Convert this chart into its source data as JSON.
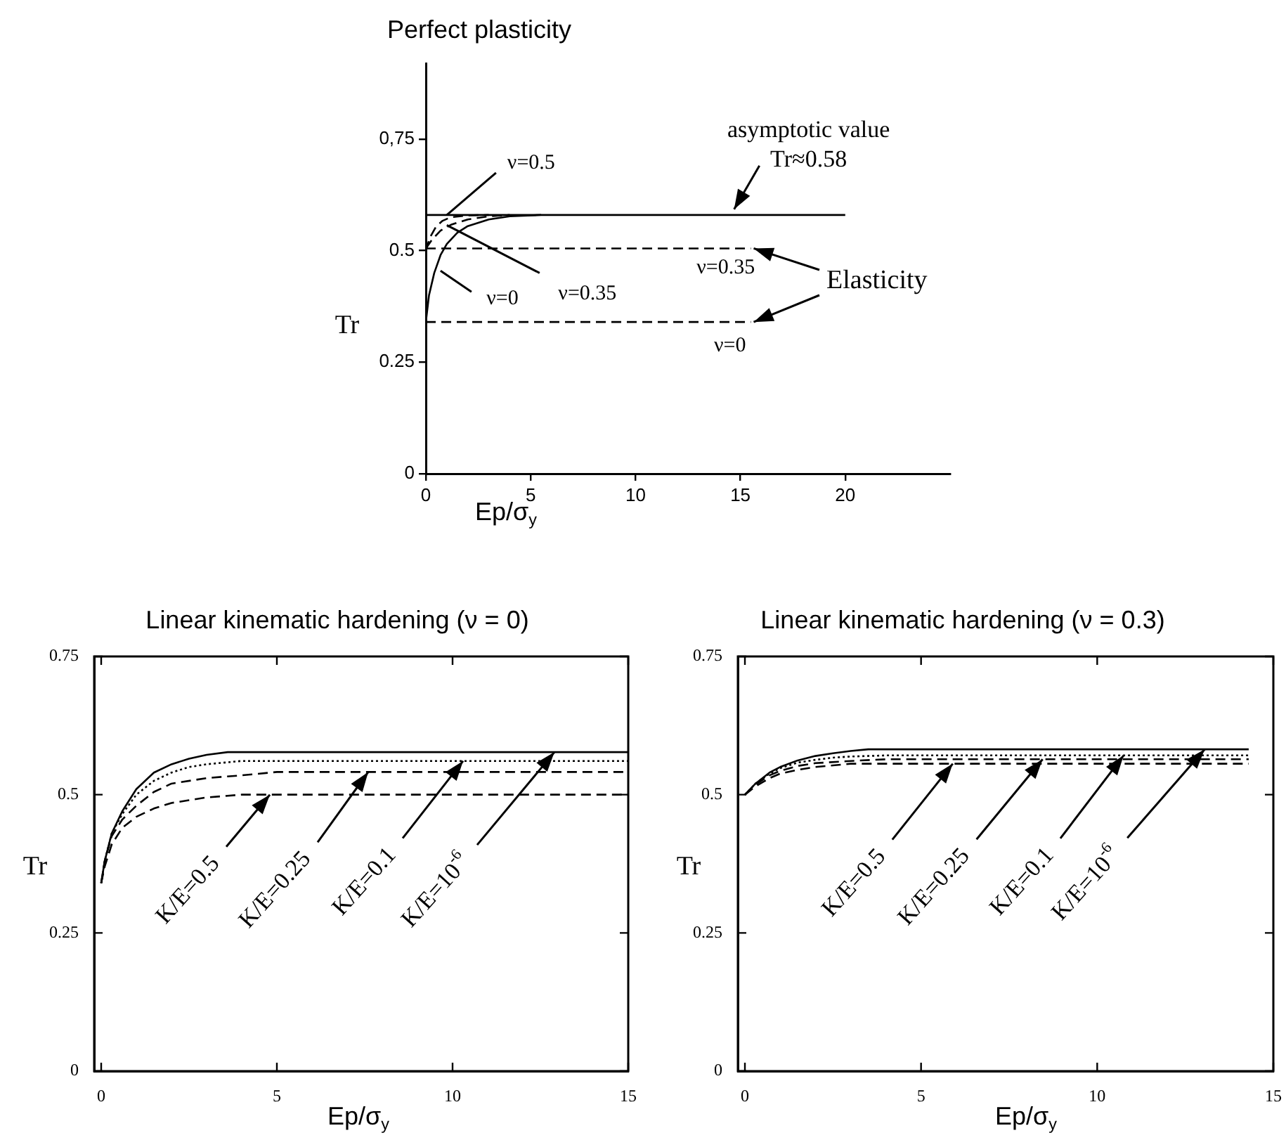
{
  "chart_data": [
    {
      "type": "line",
      "title": "Perfect plasticity",
      "xlabel": "Ep/σ$_{y}$",
      "ylabel": "Tr",
      "xlim": [
        0,
        25
      ],
      "xticks": [
        0,
        5,
        10,
        15,
        20
      ],
      "ylim": [
        0,
        0.92
      ],
      "yticks": [
        0,
        0.25,
        0.5,
        {
          "value": 0.75,
          "label": "0,75"
        }
      ],
      "series": [
        {
          "color": "#000000",
          "line_style": "dashed",
          "x": [
            0,
            0.2,
            0.5,
            0.8,
            1.2,
            2,
            3
          ],
          "values": [
            0.5,
            0.53,
            0.555,
            0.567,
            0.575,
            0.579,
            0.58
          ]
        },
        {
          "color": "#000000",
          "line_style": "dashed",
          "x": [
            0,
            0.3,
            0.7,
            1.2,
            2,
            3,
            4
          ],
          "values": [
            0.505,
            0.525,
            0.545,
            0.558,
            0.57,
            0.577,
            0.58
          ]
        },
        {
          "color": "#000000",
          "line_style": "solid",
          "x": [
            0,
            0.15,
            0.4,
            0.7,
            1,
            1.5,
            2,
            3,
            4,
            5.5
          ],
          "values": [
            0.34,
            0.4,
            0.45,
            0.49,
            0.515,
            0.54,
            0.555,
            0.57,
            0.577,
            0.58
          ]
        },
        {
          "color": "#000000",
          "line_style": "solid",
          "x": [
            0,
            20
          ],
          "values": [
            0.58,
            0.58
          ]
        },
        {
          "color": "#000000",
          "line_style": "dashed",
          "x": [
            0,
            15.5
          ],
          "values": [
            0.505,
            0.505
          ]
        },
        {
          "color": "#000000",
          "line_style": "dashed",
          "x": [
            0,
            15.5
          ],
          "values": [
            0.34,
            0.34
          ]
        }
      ],
      "annotations": [
        {
          "text": "asymptotic value\nTr≈0.58",
          "x": 14.7,
          "y": 0.58
        },
        {
          "text": "ν=0.5",
          "x": 1,
          "y": 0.58
        },
        {
          "text": "ν=0.35",
          "x": 1,
          "y": 0.557
        },
        {
          "text": "ν=0",
          "x": 0.7,
          "y": 0.455
        },
        {
          "text": "ν=0.35",
          "x": 14.3,
          "y": 0.505
        },
        {
          "text": "ν=0",
          "x": 14.5,
          "y": 0.34
        },
        {
          "text": "Elasticity",
          "x": 15.5,
          "y": 0.505
        }
      ]
    },
    {
      "type": "line",
      "title": "Linear kinematic hardening (ν = 0)",
      "xlabel": "Ep/σ$_{y}$",
      "ylabel": "Tr",
      "xlim": [
        -0.2,
        15
      ],
      "xticks": [
        0,
        5,
        10,
        15
      ],
      "ylim": [
        0,
        0.75
      ],
      "yticks": [
        0,
        0.25,
        0.5,
        0.75
      ],
      "series": [
        {
          "color": "#000000",
          "line_style": "solid",
          "x": [
            0,
            0.1,
            0.3,
            0.6,
            1,
            1.5,
            2,
            2.5,
            3,
            3.6,
            15
          ],
          "values": [
            0.34,
            0.38,
            0.43,
            0.47,
            0.51,
            0.54,
            0.555,
            0.565,
            0.572,
            0.577,
            0.577
          ]
        },
        {
          "color": "#000000",
          "line_style": "dotted",
          "x": [
            0,
            0.1,
            0.3,
            0.6,
            1,
            1.5,
            2,
            2.5,
            3,
            4,
            15
          ],
          "values": [
            0.34,
            0.38,
            0.43,
            0.465,
            0.5,
            0.525,
            0.54,
            0.55,
            0.555,
            0.561,
            0.561
          ]
        },
        {
          "color": "#000000",
          "line_style": "dashed",
          "x": [
            0,
            0.1,
            0.3,
            0.6,
            1,
            1.5,
            2,
            3,
            4,
            5,
            15
          ],
          "values": [
            0.34,
            0.38,
            0.425,
            0.455,
            0.48,
            0.505,
            0.52,
            0.53,
            0.535,
            0.541,
            0.541
          ]
        },
        {
          "color": "#000000",
          "line_style": "dashed",
          "x": [
            0,
            0.1,
            0.3,
            0.6,
            1,
            1.5,
            2,
            2.5,
            3,
            4,
            15
          ],
          "values": [
            0.34,
            0.37,
            0.41,
            0.44,
            0.46,
            0.475,
            0.485,
            0.49,
            0.495,
            0.5,
            0.5
          ]
        }
      ],
      "annotations": [
        {
          "text": "K/E=0.5",
          "x": 4.8,
          "y": 0.5
        },
        {
          "text": "K/E=0.25",
          "x": 7.6,
          "y": 0.541
        },
        {
          "text": "K/E=0.1",
          "x": 10.3,
          "y": 0.561
        },
        {
          "text": "K/E=10$^{-6}$",
          "x": 12.9,
          "y": 0.577
        }
      ]
    },
    {
      "type": "line",
      "title": "Linear kinematic hardening (ν = 0.3)",
      "xlabel": "Ep/σ$_{y}$",
      "ylabel": "Tr",
      "xlim": [
        -0.2,
        15
      ],
      "xticks": [
        0,
        5,
        10,
        15
      ],
      "ylim": [
        0,
        0.75
      ],
      "yticks": [
        0,
        0.25,
        0.5,
        0.75
      ],
      "series": [
        {
          "color": "#000000",
          "line_style": "solid",
          "x": [
            0,
            0.3,
            0.7,
            1,
            1.5,
            2,
            2.5,
            3,
            3.5,
            14.3
          ],
          "values": [
            0.5,
            0.52,
            0.54,
            0.55,
            0.562,
            0.57,
            0.575,
            0.579,
            0.582,
            0.582
          ]
        },
        {
          "color": "#000000",
          "line_style": "dotted",
          "x": [
            0,
            0.3,
            0.7,
            1,
            1.5,
            2,
            2.5,
            3,
            4,
            14.3
          ],
          "values": [
            0.5,
            0.52,
            0.538,
            0.548,
            0.558,
            0.563,
            0.567,
            0.569,
            0.571,
            0.571
          ]
        },
        {
          "color": "#000000",
          "line_style": "dashed",
          "x": [
            0,
            0.3,
            0.7,
            1,
            1.5,
            2,
            3,
            4,
            14.3
          ],
          "values": [
            0.5,
            0.518,
            0.535,
            0.543,
            0.552,
            0.557,
            0.561,
            0.564,
            0.564
          ]
        },
        {
          "color": "#000000",
          "line_style": "dashed",
          "x": [
            0,
            0.3,
            0.7,
            1,
            1.5,
            2,
            3,
            14.3
          ],
          "values": [
            0.5,
            0.515,
            0.53,
            0.538,
            0.545,
            0.55,
            0.556,
            0.556
          ]
        }
      ],
      "annotations": [
        {
          "text": "K/E=0.5",
          "x": 5.9,
          "y": 0.556
        },
        {
          "text": "K/E=0.25",
          "x": 8.45,
          "y": 0.564
        },
        {
          "text": "K/E=0.1",
          "x": 10.75,
          "y": 0.571
        },
        {
          "text": "K/E=10$^{-6}$",
          "x": 13.05,
          "y": 0.582
        }
      ]
    }
  ]
}
